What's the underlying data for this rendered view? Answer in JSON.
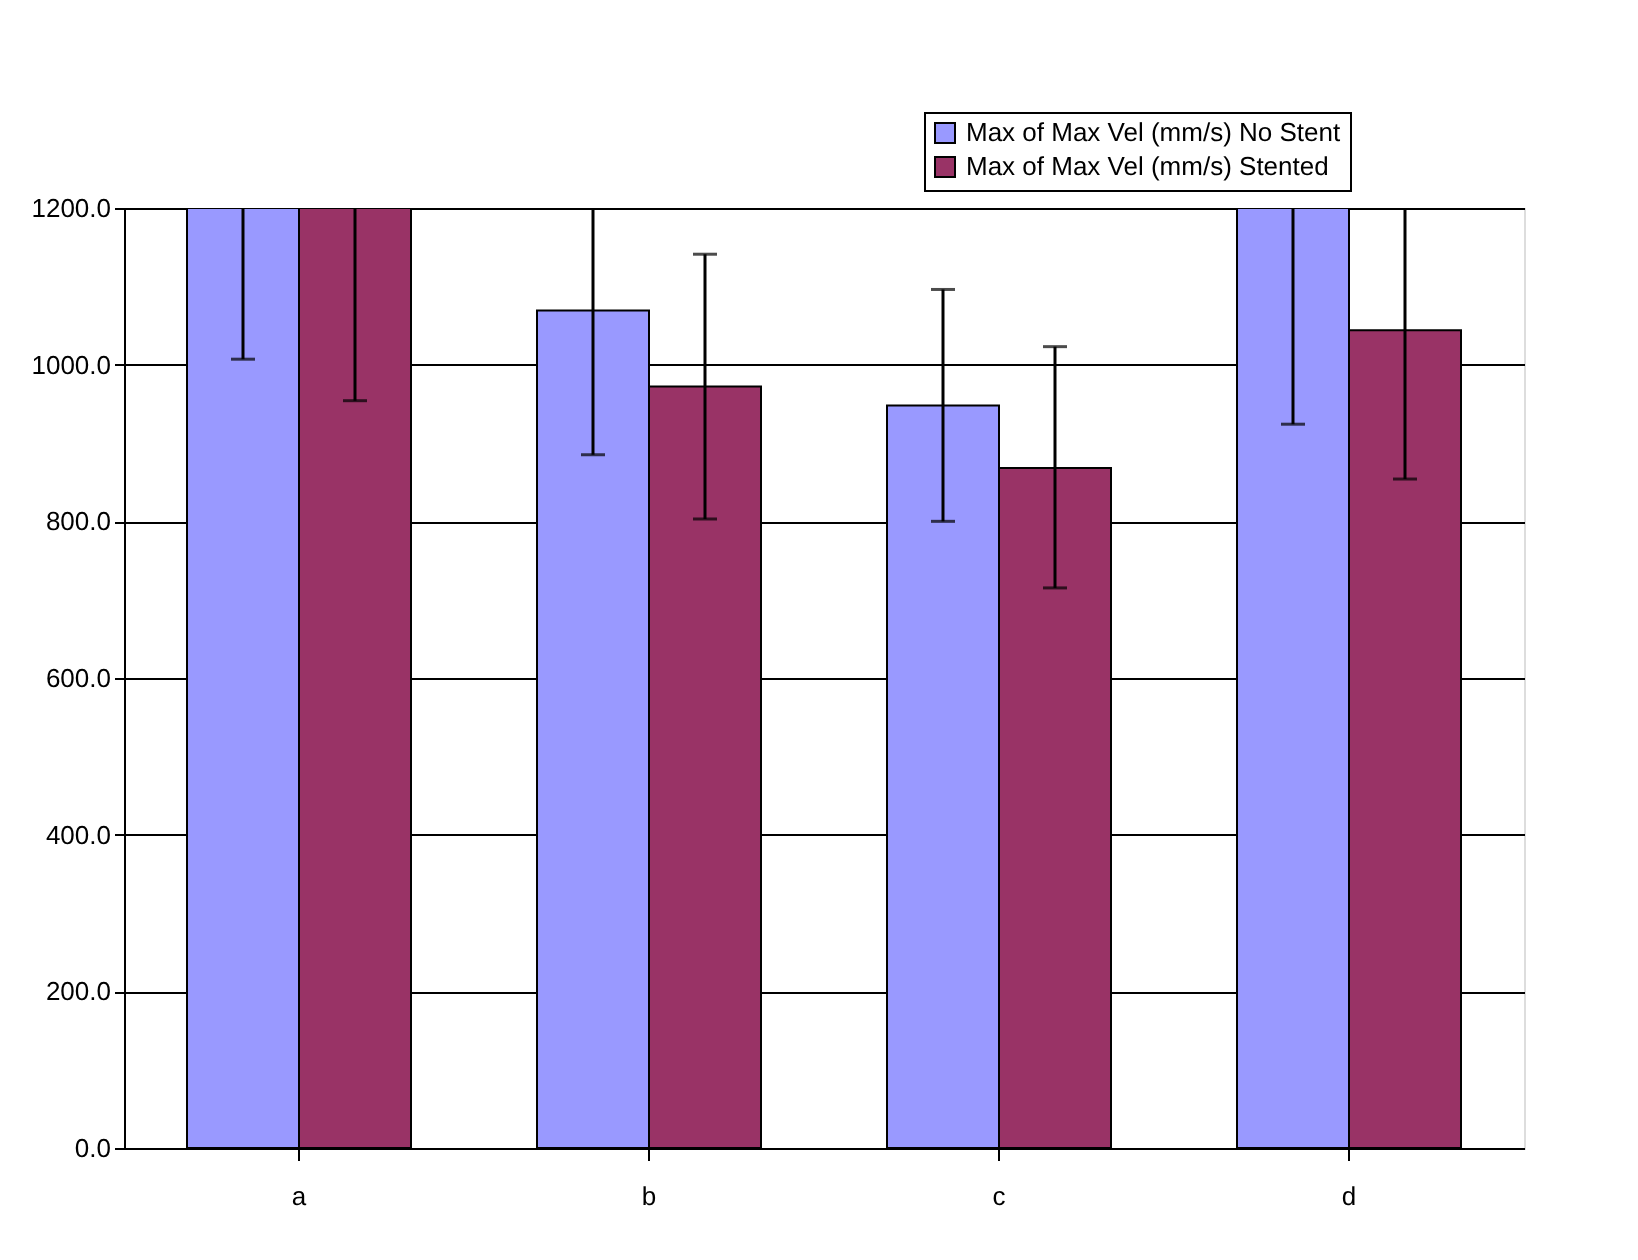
{
  "chart_data": {
    "type": "bar",
    "categories": [
      "a",
      "b",
      "c",
      "d"
    ],
    "series": [
      {
        "name": "Max of Max Vel (mm/s) No Stent",
        "color": "#9999ff",
        "values": [
          1200,
          1069,
          948,
          1200
        ],
        "errors": [
          [
            1007,
            1200
          ],
          [
            885,
            1200
          ],
          [
            800,
            1096
          ],
          [
            924,
            1200
          ]
        ]
      },
      {
        "name": "Max of Max Vel (mm/s) Stented",
        "color": "#993366",
        "values": [
          1200,
          972,
          868,
          1044
        ],
        "errors": [
          [
            954,
            1200
          ],
          [
            803,
            1141
          ],
          [
            715,
            1023
          ],
          [
            854,
            1200
          ]
        ]
      }
    ],
    "ylim": [
      0,
      1200
    ],
    "yticks": [
      {
        "value": 0,
        "label": "0.0"
      },
      {
        "value": 200,
        "label": "200.0"
      },
      {
        "value": 400,
        "label": "400.0"
      },
      {
        "value": 600,
        "label": "600.0"
      },
      {
        "value": 800,
        "label": "800.0"
      },
      {
        "value": 1000,
        "label": "1000.0"
      },
      {
        "value": 1200,
        "label": "1200.0"
      }
    ],
    "grid": "y",
    "legend": "top right"
  }
}
